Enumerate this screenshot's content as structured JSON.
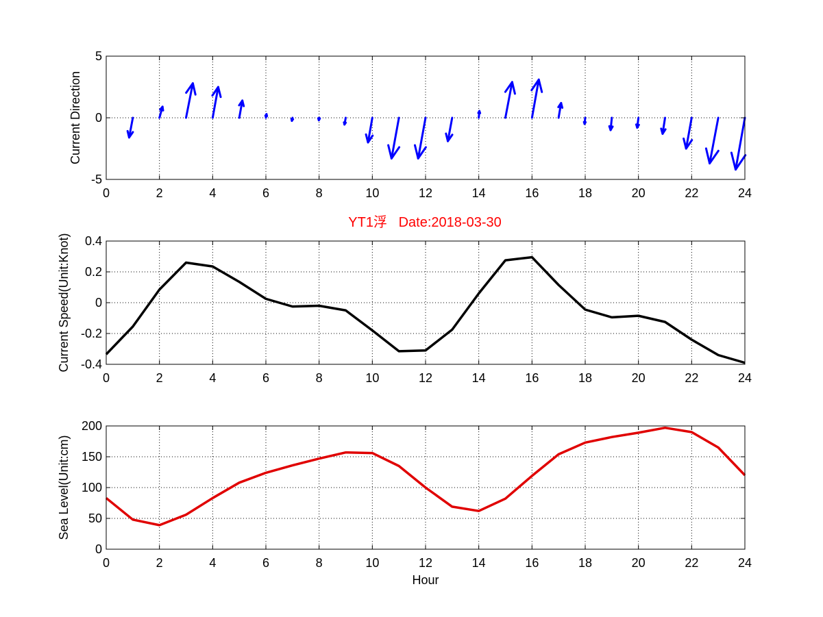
{
  "figure_title": "YT1浮   Date:2018-03-30",
  "colors": {
    "background": "#ffffff",
    "axes": "#000000",
    "grid": "#000000",
    "title": "#ff0000",
    "direction": "#0000ff",
    "speed": "#000000",
    "sea_level": "#e00000"
  },
  "chart_data": [
    {
      "type": "quiver",
      "title": "",
      "xlabel": "",
      "ylabel": "Current Direction",
      "xlim": [
        0,
        24
      ],
      "ylim": [
        -5,
        5
      ],
      "xticks": [
        0,
        2,
        4,
        6,
        8,
        10,
        12,
        14,
        16,
        18,
        20,
        22,
        24
      ],
      "yticks": [
        -5,
        0,
        5
      ],
      "grid": true,
      "series": [
        {
          "points": [
            {
              "x": 1,
              "u": -0.3,
              "v": -1.6
            },
            {
              "x": 2,
              "u": 0.25,
              "v": 0.9
            },
            {
              "x": 3,
              "u": 0.55,
              "v": 2.8
            },
            {
              "x": 4,
              "u": 0.45,
              "v": 2.5
            },
            {
              "x": 5,
              "u": 0.25,
              "v": 1.4
            },
            {
              "x": 6,
              "u": 0.05,
              "v": 0.3
            },
            {
              "x": 7,
              "u": -0.05,
              "v": -0.25
            },
            {
              "x": 8,
              "u": -0.02,
              "v": -0.2
            },
            {
              "x": 9,
              "u": -0.1,
              "v": -0.55
            },
            {
              "x": 10,
              "u": -0.35,
              "v": -2.0
            },
            {
              "x": 11,
              "u": -0.6,
              "v": -3.3
            },
            {
              "x": 12,
              "u": -0.6,
              "v": -3.3
            },
            {
              "x": 13,
              "u": -0.35,
              "v": -1.9
            },
            {
              "x": 14,
              "u": 0.05,
              "v": 0.55
            },
            {
              "x": 15,
              "u": 0.55,
              "v": 2.9
            },
            {
              "x": 16,
              "u": 0.55,
              "v": 3.1
            },
            {
              "x": 17,
              "u": 0.2,
              "v": 1.2
            },
            {
              "x": 18,
              "u": -0.05,
              "v": -0.5
            },
            {
              "x": 19,
              "u": -0.1,
              "v": -1.0
            },
            {
              "x": 20,
              "u": -0.1,
              "v": -0.8
            },
            {
              "x": 21,
              "u": -0.2,
              "v": -1.3
            },
            {
              "x": 22,
              "u": -0.45,
              "v": -2.5
            },
            {
              "x": 23,
              "u": -0.7,
              "v": -3.7
            },
            {
              "x": 24,
              "u": -0.75,
              "v": -4.2
            }
          ]
        }
      ]
    },
    {
      "type": "line",
      "title": "YT1浮   Date:2018-03-30",
      "xlabel": "",
      "ylabel": "Current Speed(Unit:Knot)",
      "xlim": [
        0,
        24
      ],
      "ylim": [
        -0.4,
        0.4
      ],
      "xticks": [
        0,
        2,
        4,
        6,
        8,
        10,
        12,
        14,
        16,
        18,
        20,
        22,
        24
      ],
      "yticks": [
        -0.4,
        -0.2,
        0,
        0.2,
        0.4
      ],
      "ytick_labels": [
        "-0.4",
        "-0.2",
        "0",
        "0.2",
        "0.4"
      ],
      "grid": true,
      "series": [
        {
          "x": [
            0,
            1,
            2,
            3,
            4,
            5,
            6,
            7,
            8,
            9,
            10,
            11,
            12,
            13,
            14,
            15,
            16,
            17,
            18,
            19,
            20,
            21,
            22,
            23,
            24
          ],
          "values": [
            -0.335,
            -0.155,
            0.085,
            0.26,
            0.235,
            0.135,
            0.025,
            -0.025,
            -0.02,
            -0.05,
            -0.18,
            -0.315,
            -0.31,
            -0.175,
            0.06,
            0.275,
            0.295,
            0.115,
            -0.045,
            -0.095,
            -0.085,
            -0.125,
            -0.24,
            -0.34,
            -0.39
          ]
        }
      ]
    },
    {
      "type": "line",
      "title": "",
      "xlabel": "Hour",
      "ylabel": "Sea Level(Unit:cm)",
      "xlim": [
        0,
        24
      ],
      "ylim": [
        0,
        200
      ],
      "xticks": [
        0,
        2,
        4,
        6,
        8,
        10,
        12,
        14,
        16,
        18,
        20,
        22,
        24
      ],
      "yticks": [
        0,
        50,
        100,
        150,
        200
      ],
      "grid": true,
      "series": [
        {
          "x": [
            0,
            1,
            2,
            3,
            4,
            5,
            6,
            7,
            8,
            9,
            10,
            11,
            12,
            13,
            14,
            15,
            16,
            17,
            18,
            19,
            20,
            21,
            22,
            23,
            24
          ],
          "values": [
            83,
            48,
            39,
            56,
            83,
            108,
            124,
            136,
            147,
            157,
            156,
            135,
            100,
            69,
            62,
            82,
            119,
            154,
            173,
            182,
            189,
            197,
            190,
            165,
            120
          ]
        }
      ]
    }
  ]
}
